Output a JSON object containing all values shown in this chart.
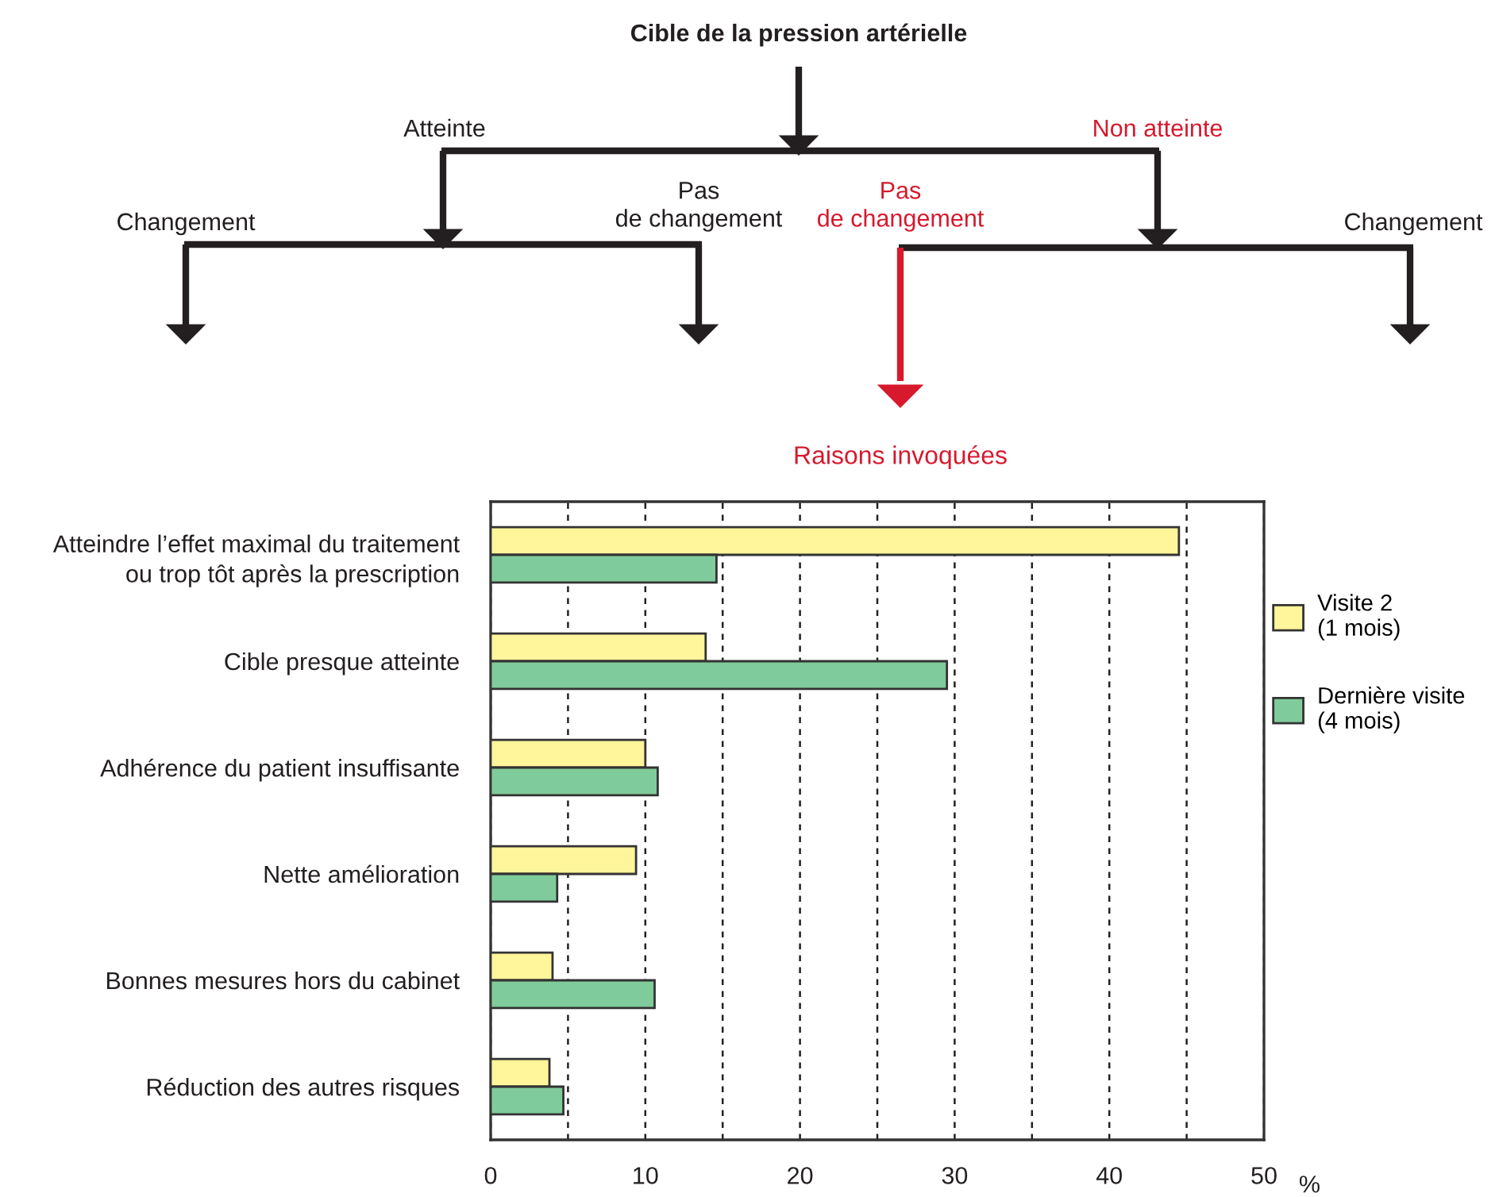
{
  "chart_data": {
    "type": "bar",
    "orientation": "horizontal",
    "title": "Raisons invoquées",
    "categories": [
      "Atteindre l’effet maximal du traitement\nou trop tôt après la prescription",
      "Cible presque atteinte",
      "Adhérence du patient insuffisante",
      "Nette amélioration",
      "Bonnes mesures hors du cabinet",
      "Réduction des autres risques"
    ],
    "series": [
      {
        "name": "Visite 2\n(1 mois)",
        "color": "#fff59a",
        "values": [
          44.5,
          13.9,
          10.0,
          9.4,
          4.0,
          3.8
        ]
      },
      {
        "name": "Dernière visite\n(4 mois)",
        "color": "#80cb9b",
        "values": [
          14.6,
          29.5,
          10.8,
          4.3,
          10.6,
          4.7
        ]
      }
    ],
    "xlabel": "%",
    "xlim": [
      0,
      50
    ],
    "xticks": [
      0,
      {
        "value": 5,
        "label": null
      },
      10,
      {
        "value": 15,
        "label": null
      },
      20,
      {
        "value": 25,
        "label": null
      },
      30,
      {
        "value": 35,
        "label": null
      },
      40,
      {
        "value": 45,
        "label": null
      },
      50
    ],
    "grid": "x",
    "legend": "right",
    "annotations": [
      "Cible de la pression artérielle",
      "Atteinte",
      "Non atteinte",
      "Pas\nde changement",
      "Pas\nde changement",
      "Changement",
      "Changement"
    ]
  }
}
